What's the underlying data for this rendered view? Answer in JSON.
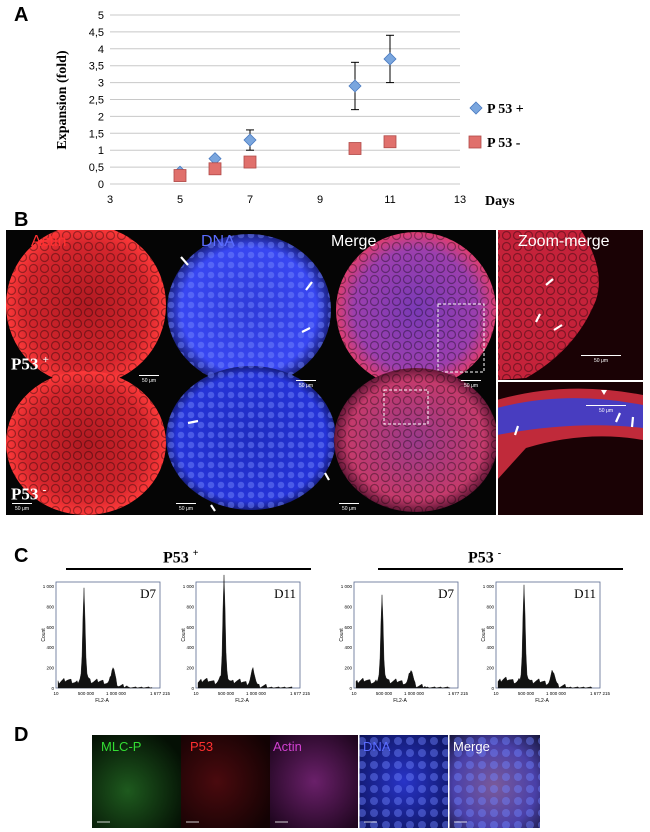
{
  "panels": {
    "a": "A",
    "b": "B",
    "c": "C",
    "d": "D"
  },
  "chart_data": {
    "type": "scatter",
    "title": "",
    "xlabel": "Days",
    "ylabel": "Expansion (fold)",
    "xlim": [
      3,
      13
    ],
    "ylim": [
      0,
      5
    ],
    "xticks": [
      "3",
      "5",
      "7",
      "9",
      "11",
      "13"
    ],
    "yticks": [
      "0",
      "0,5",
      "1",
      "1,5",
      "2",
      "2,5",
      "3",
      "3,5",
      "4",
      "4,5",
      "5"
    ],
    "grid": "horizontal",
    "legend": "right",
    "series": [
      {
        "name": "P 53 +",
        "marker": "diamond",
        "color": "#7aa6de",
        "x": [
          5,
          6,
          7,
          10,
          11
        ],
        "y": [
          0.35,
          0.75,
          1.3,
          2.9,
          3.7
        ],
        "err": [
          0,
          0.05,
          0.3,
          0.7,
          0.7
        ]
      },
      {
        "name": "P 53 -",
        "marker": "square",
        "color": "#e0706c",
        "x": [
          5,
          6,
          7,
          10,
          11
        ],
        "y": [
          0.25,
          0.45,
          0.65,
          1.05,
          1.25
        ],
        "err": [
          0,
          0,
          0,
          0,
          0
        ]
      }
    ]
  },
  "b": {
    "labels": {
      "actin": "Actin",
      "dna": "DNA",
      "merge": "Merge",
      "zoom": "Zoom-merge"
    },
    "row1": {
      "name": "P53",
      "sign": "+"
    },
    "row2": {
      "name": "P53",
      "sign": "-"
    },
    "scale": "50 μm"
  },
  "c": {
    "groups": [
      {
        "name": "P53",
        "sign": "+"
      },
      {
        "name": "P53",
        "sign": "-"
      }
    ],
    "histos": [
      {
        "day": "D7"
      },
      {
        "day": "D11"
      },
      {
        "day": "D7"
      },
      {
        "day": "D11"
      }
    ],
    "ylabel": "Count",
    "xlabel": "FL2-A",
    "xticks": [
      "10",
      "500 000",
      "1 000 000",
      "1 677 215"
    ],
    "yticks": [
      "1 000",
      "800",
      "600",
      "400",
      "200",
      "0"
    ]
  },
  "d": {
    "labels": {
      "mlc": "MLC-P",
      "p53": "P53",
      "actin": "Actin",
      "dna": "DNA",
      "merge": "Merge"
    }
  },
  "colors": {
    "red_label": "#ff3030",
    "blue_label": "#5a6cff",
    "green_label": "#33dd33",
    "magenta_label": "#d040d0"
  }
}
